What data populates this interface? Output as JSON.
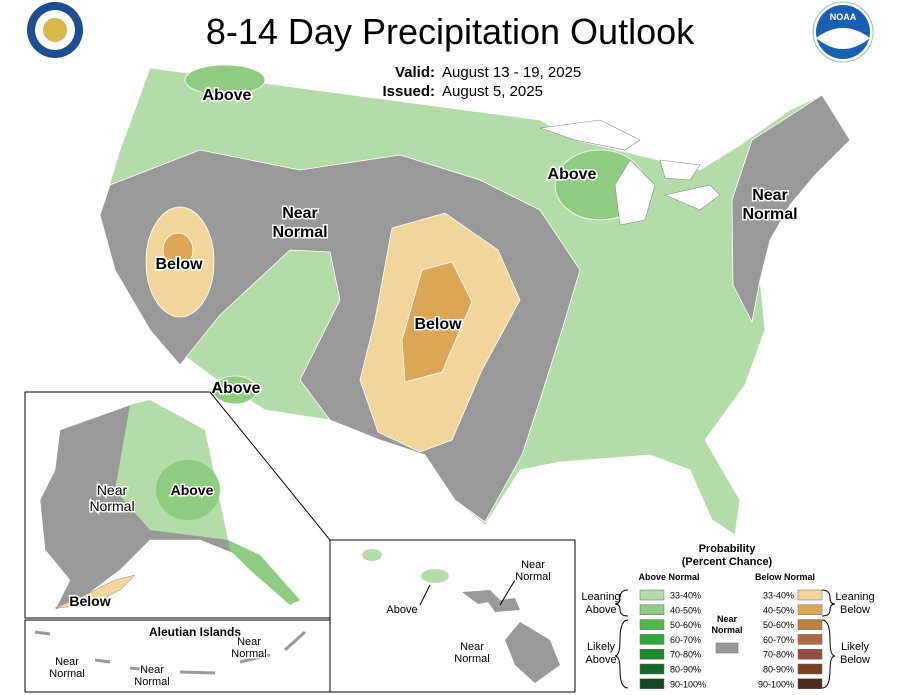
{
  "header": {
    "title": "8-14 Day Precipitation Outlook",
    "valid_label": "Valid:",
    "valid": "August 13 - 19, 2025",
    "issued_label": "Issued:",
    "issued": "August 5, 2025"
  },
  "conus_labels": [
    {
      "lines": [
        "Above"
      ]
    },
    {
      "lines": [
        "Near",
        "Normal"
      ]
    },
    {
      "lines": [
        "Below"
      ]
    },
    {
      "lines": [
        "Above"
      ]
    },
    {
      "lines": [
        "Below"
      ]
    },
    {
      "lines": [
        "Above"
      ]
    },
    {
      "lines": [
        "Near",
        "Normal"
      ]
    }
  ],
  "alaska_labels": [
    {
      "lines": [
        "Near",
        "Normal"
      ]
    },
    {
      "lines": [
        "Above"
      ]
    },
    {
      "lines": [
        "Below"
      ]
    }
  ],
  "aleutian": {
    "title": "Aleutian Islands",
    "labels": [
      {
        "lines": [
          "Near",
          "Normal"
        ]
      },
      {
        "lines": [
          "Near",
          "Normal"
        ]
      },
      {
        "lines": [
          "Near",
          "Normal"
        ]
      }
    ]
  },
  "hawaii_labels": [
    {
      "lines": [
        "Near",
        "Normal"
      ]
    },
    {
      "lines": [
        "Above"
      ]
    },
    {
      "lines": [
        "Near",
        "Normal"
      ]
    }
  ],
  "legend": {
    "title": [
      "Probability",
      "(Percent Chance)"
    ],
    "above_header": "Above Normal",
    "below_header": "Below Normal",
    "leaning_above": [
      "Leaning",
      "Above"
    ],
    "likely_above": [
      "Likely",
      "Above"
    ],
    "near_normal": [
      "Near",
      "Normal"
    ],
    "near_color": "#999999",
    "leaning_below": [
      "Leaning",
      "Below"
    ],
    "likely_below": [
      "Likely",
      "Below"
    ],
    "above": [
      {
        "range": "33-40%",
        "color": "#b3dca8"
      },
      {
        "range": "40-50%",
        "color": "#8fcc7f"
      },
      {
        "range": "50-60%",
        "color": "#4eb948"
      },
      {
        "range": "60-70%",
        "color": "#2ea83a"
      },
      {
        "range": "70-80%",
        "color": "#1a8a2e"
      },
      {
        "range": "80-90%",
        "color": "#17692a"
      },
      {
        "range": "90-100%",
        "color": "#134a22"
      }
    ],
    "below": [
      {
        "range": "33-40%",
        "color": "#f2d59a"
      },
      {
        "range": "40-50%",
        "color": "#dba756"
      },
      {
        "range": "50-60%",
        "color": "#bf7f3d"
      },
      {
        "range": "60-70%",
        "color": "#a96a44"
      },
      {
        "range": "70-80%",
        "color": "#935040"
      },
      {
        "range": "80-90%",
        "color": "#7a4020"
      },
      {
        "range": "90-100%",
        "color": "#4d2a1a"
      }
    ]
  }
}
